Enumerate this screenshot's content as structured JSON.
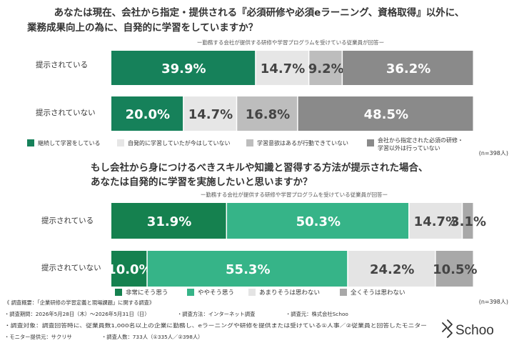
{
  "chart_data": [
    {
      "type": "bar",
      "stacked": true,
      "orientation": "horizontal",
      "title": "あなたは現在、会社から指定・提供される『必須研修や必須eラーニング、資格取得』以外に、業務成果向上の為に、自発的に学習をしていますか？",
      "title_lines": [
        "あなたは現在、会社から指定・提供される『必須研修や必須eラーニング、資格取得』以外に、",
        "業務成果向上の為に、自発的に学習をしていますか？"
      ],
      "subtitle": "ー勤務する会社が提供する研修や学習プログラムを受けている従業員が回答ー",
      "categories": [
        "提示されている",
        "提示されていない"
      ],
      "series": [
        {
          "name": "継続して学習をしている",
          "values": [
            39.9,
            20.0
          ],
          "color": "#16815a"
        },
        {
          "name": "自発的に学習していたが今はしていない",
          "values": [
            14.7,
            14.7
          ],
          "color": "#e6e6e6"
        },
        {
          "name": "学習意欲はあるが行動できていない",
          "values": [
            9.2,
            16.8
          ],
          "color": "#bdbdbd"
        },
        {
          "name": "会社から指定された必須の研修・学習以外は行っていない",
          "values": [
            36.2,
            48.5
          ],
          "color": "#8a8a8a"
        }
      ],
      "value_labels": [
        [
          "39.9%",
          "14.7%",
          "9.2%",
          "36.2%"
        ],
        [
          "20.0%",
          "14.7%",
          "16.8%",
          "48.5%"
        ]
      ],
      "legend_labels": [
        "継続して学習をしている",
        "自発的に学習していたが今はしていない",
        "学習意欲はあるが行動できていない",
        "会社から指定された必須の研修・学習以外は行っていない"
      ],
      "note": "(n=398人)"
    },
    {
      "type": "bar",
      "stacked": true,
      "orientation": "horizontal",
      "title": "もし会社から身につけるべきスキルや知識と習得する方法が提示された場合、あなたは自発的に学習を実施したいと思いますか？",
      "title_lines": [
        "もし会社から身につけるべきスキルや知識と習得する方法が提示された場合、",
        "あなたは自発的に学習を実施したいと思いますか？"
      ],
      "subtitle": "ー勤務する会社が提供する研修や学習プログラムを受けている従業員が回答ー",
      "categories": [
        "提示されている",
        "提示されていない"
      ],
      "series": [
        {
          "name": "非常にそう思う",
          "values": [
            31.9,
            10.0
          ],
          "color": "#15814f"
        },
        {
          "name": "ややそう思う",
          "values": [
            50.3,
            55.3
          ],
          "color": "#36b488"
        },
        {
          "name": "あまりそうは思わない",
          "values": [
            14.7,
            24.2
          ],
          "color": "#e4e4e4"
        },
        {
          "name": "全くそうは思わない",
          "values": [
            3.1,
            10.5
          ],
          "color": "#a8a8a8"
        }
      ],
      "value_labels": [
        [
          "31.9%",
          "50.3%",
          "14.7%",
          "3.1%"
        ],
        [
          "10.0%",
          "55.3%",
          "24.2%",
          "10.5%"
        ]
      ],
      "legend_labels": [
        "非常にそう思う",
        "ややそう思う",
        "あまりそうは思わない",
        "全くそうは思わない"
      ],
      "note": "(n=398人)"
    }
  ],
  "footer": {
    "survey_title": "《 調査概要：「企業研修の学習定義と現場課題」に関する調査》",
    "period": "・調査期間：2026年5月28日（木）～2026年5月31日（日）",
    "method": "・調査方法：インターネット調査",
    "organizer": "・調査元：株式会社Schoo",
    "target": "・調査対象：調査回答時に、従業員数1,000名以上の企業に勤務し、eラーニングや研修を提供または受けている①人事／②従業員と回答したモニター",
    "monitor": "・モニター提供元：サクリサ",
    "respondents": "・調査人数：733人（①335人／②398人）"
  },
  "brand": {
    "logo_text": "Schoo"
  }
}
